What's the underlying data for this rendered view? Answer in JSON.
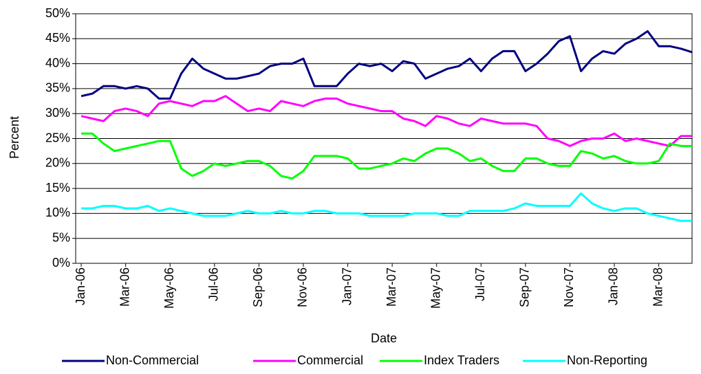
{
  "chart_data": {
    "type": "line",
    "x_label": "Date",
    "y_label": "Percent",
    "categories": [
      "Jan-06",
      null,
      null,
      null,
      "Mar-06",
      null,
      null,
      null,
      "May-06",
      null,
      null,
      null,
      "Jul-06",
      null,
      null,
      null,
      "Sep-06",
      null,
      null,
      null,
      "Nov-06",
      null,
      null,
      null,
      "Jan-07",
      null,
      null,
      null,
      "Mar-07",
      null,
      null,
      null,
      "May-07",
      null,
      null,
      null,
      "Jul-07",
      null,
      null,
      null,
      "Sep-07",
      null,
      null,
      null,
      "Nov-07",
      null,
      null,
      null,
      "Jan-08",
      null,
      null,
      null,
      "Mar-08",
      null,
      null,
      null
    ],
    "series": [
      {
        "name": "Non-Commercial",
        "color": "#000080",
        "values": [
          33.5,
          34,
          35.5,
          35.5,
          35,
          35.5,
          35,
          33,
          33,
          38,
          41,
          39,
          38,
          37,
          37,
          37.5,
          38,
          39.5,
          40,
          40,
          41,
          35.5,
          35.5,
          35.5,
          38,
          40,
          39.5,
          40,
          38.5,
          40.5,
          40,
          37,
          38,
          39,
          39.5,
          41,
          38.5,
          41,
          42.5,
          42.5,
          38.5,
          40,
          42,
          44.5,
          45.5,
          38.5,
          41,
          42.5,
          42,
          44,
          45,
          46.5,
          43.5,
          43.5,
          43,
          42.3
        ]
      },
      {
        "name": "Commercial",
        "color": "#ff00ff",
        "values": [
          29.5,
          29,
          28.5,
          30.5,
          31,
          30.5,
          29.5,
          32,
          32.5,
          32,
          31.5,
          32.5,
          32.5,
          33.5,
          32,
          30.5,
          31,
          30.5,
          32.5,
          32,
          31.5,
          32.5,
          33,
          33,
          32,
          31.5,
          31,
          30.5,
          30.5,
          29,
          28.5,
          27.5,
          29.5,
          29,
          28,
          27.5,
          29,
          28.5,
          28,
          28,
          28,
          27.5,
          25,
          24.5,
          23.5,
          24.5,
          25,
          25,
          26,
          24.5,
          25,
          24.5,
          24,
          23.5,
          25.5,
          25.5
        ]
      },
      {
        "name": "Index Traders",
        "color": "#00ff00",
        "values": [
          26,
          26,
          24,
          22.5,
          23,
          23.5,
          24,
          24.5,
          24.5,
          19,
          17.5,
          18.5,
          20,
          19.5,
          20,
          20.5,
          20.5,
          19.5,
          17.5,
          17,
          18.5,
          21.5,
          21.5,
          21.5,
          21,
          19,
          19,
          19.5,
          20,
          21,
          20.5,
          22,
          23,
          23,
          22,
          20.5,
          21,
          19.5,
          18.5,
          18.5,
          21,
          21,
          20,
          19.5,
          19.5,
          22.5,
          22,
          21,
          21.5,
          20.5,
          20,
          20,
          20.5,
          24,
          23.5,
          23.5
        ]
      },
      {
        "name": "Non-Reporting",
        "color": "#00ffff",
        "values": [
          11,
          11,
          11.5,
          11.5,
          11,
          11,
          11.5,
          10.5,
          11,
          10.5,
          10,
          9.5,
          9.5,
          9.5,
          10,
          10.5,
          10,
          10,
          10.5,
          10,
          10,
          10.5,
          10.5,
          10,
          10,
          10,
          9.5,
          9.5,
          9.5,
          9.5,
          10,
          10,
          10,
          9.5,
          9.5,
          10.5,
          10.5,
          10.5,
          10.5,
          11,
          12,
          11.5,
          11.5,
          11.5,
          11.5,
          14,
          12,
          11,
          10.5,
          11,
          11,
          10,
          9.5,
          9,
          8.5,
          8.5
        ]
      }
    ],
    "ylim": [
      0,
      50
    ],
    "yticks": [
      {
        "value": 0,
        "label": "0%"
      },
      {
        "value": 5,
        "label": "5%"
      },
      {
        "value": 10,
        "label": "10%"
      },
      {
        "value": 15,
        "label": "15%"
      },
      {
        "value": 20,
        "label": "20%"
      },
      {
        "value": 25,
        "label": "25%"
      },
      {
        "value": 30,
        "label": "30%"
      },
      {
        "value": 35,
        "label": "35%"
      },
      {
        "value": 40,
        "label": "40%"
      },
      {
        "value": 45,
        "label": "45%"
      },
      {
        "value": 50,
        "label": "50%"
      }
    ],
    "grid": true,
    "legend": "bottom"
  }
}
